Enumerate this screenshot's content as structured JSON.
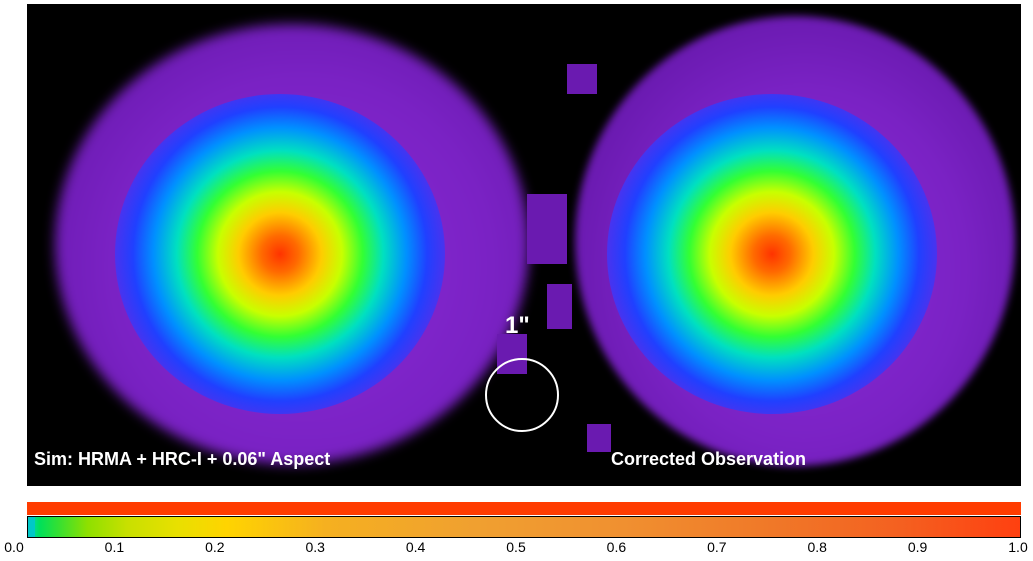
{
  "labels": {
    "left": "Sim: HRMA + HRC-I + 0.06\" Aspect",
    "right": "Corrected Observation",
    "scale": "1\""
  },
  "colorbar": {
    "ticks": [
      "0.0",
      "0.1",
      "0.2",
      "0.3",
      "0.4",
      "0.5",
      "0.6",
      "0.7",
      "0.8",
      "0.9",
      "1.0"
    ]
  },
  "colors": {
    "background": "#000000",
    "halo": "#7a22c4",
    "peak": "#ff3300",
    "reference_bar": "#ff3c00"
  }
}
